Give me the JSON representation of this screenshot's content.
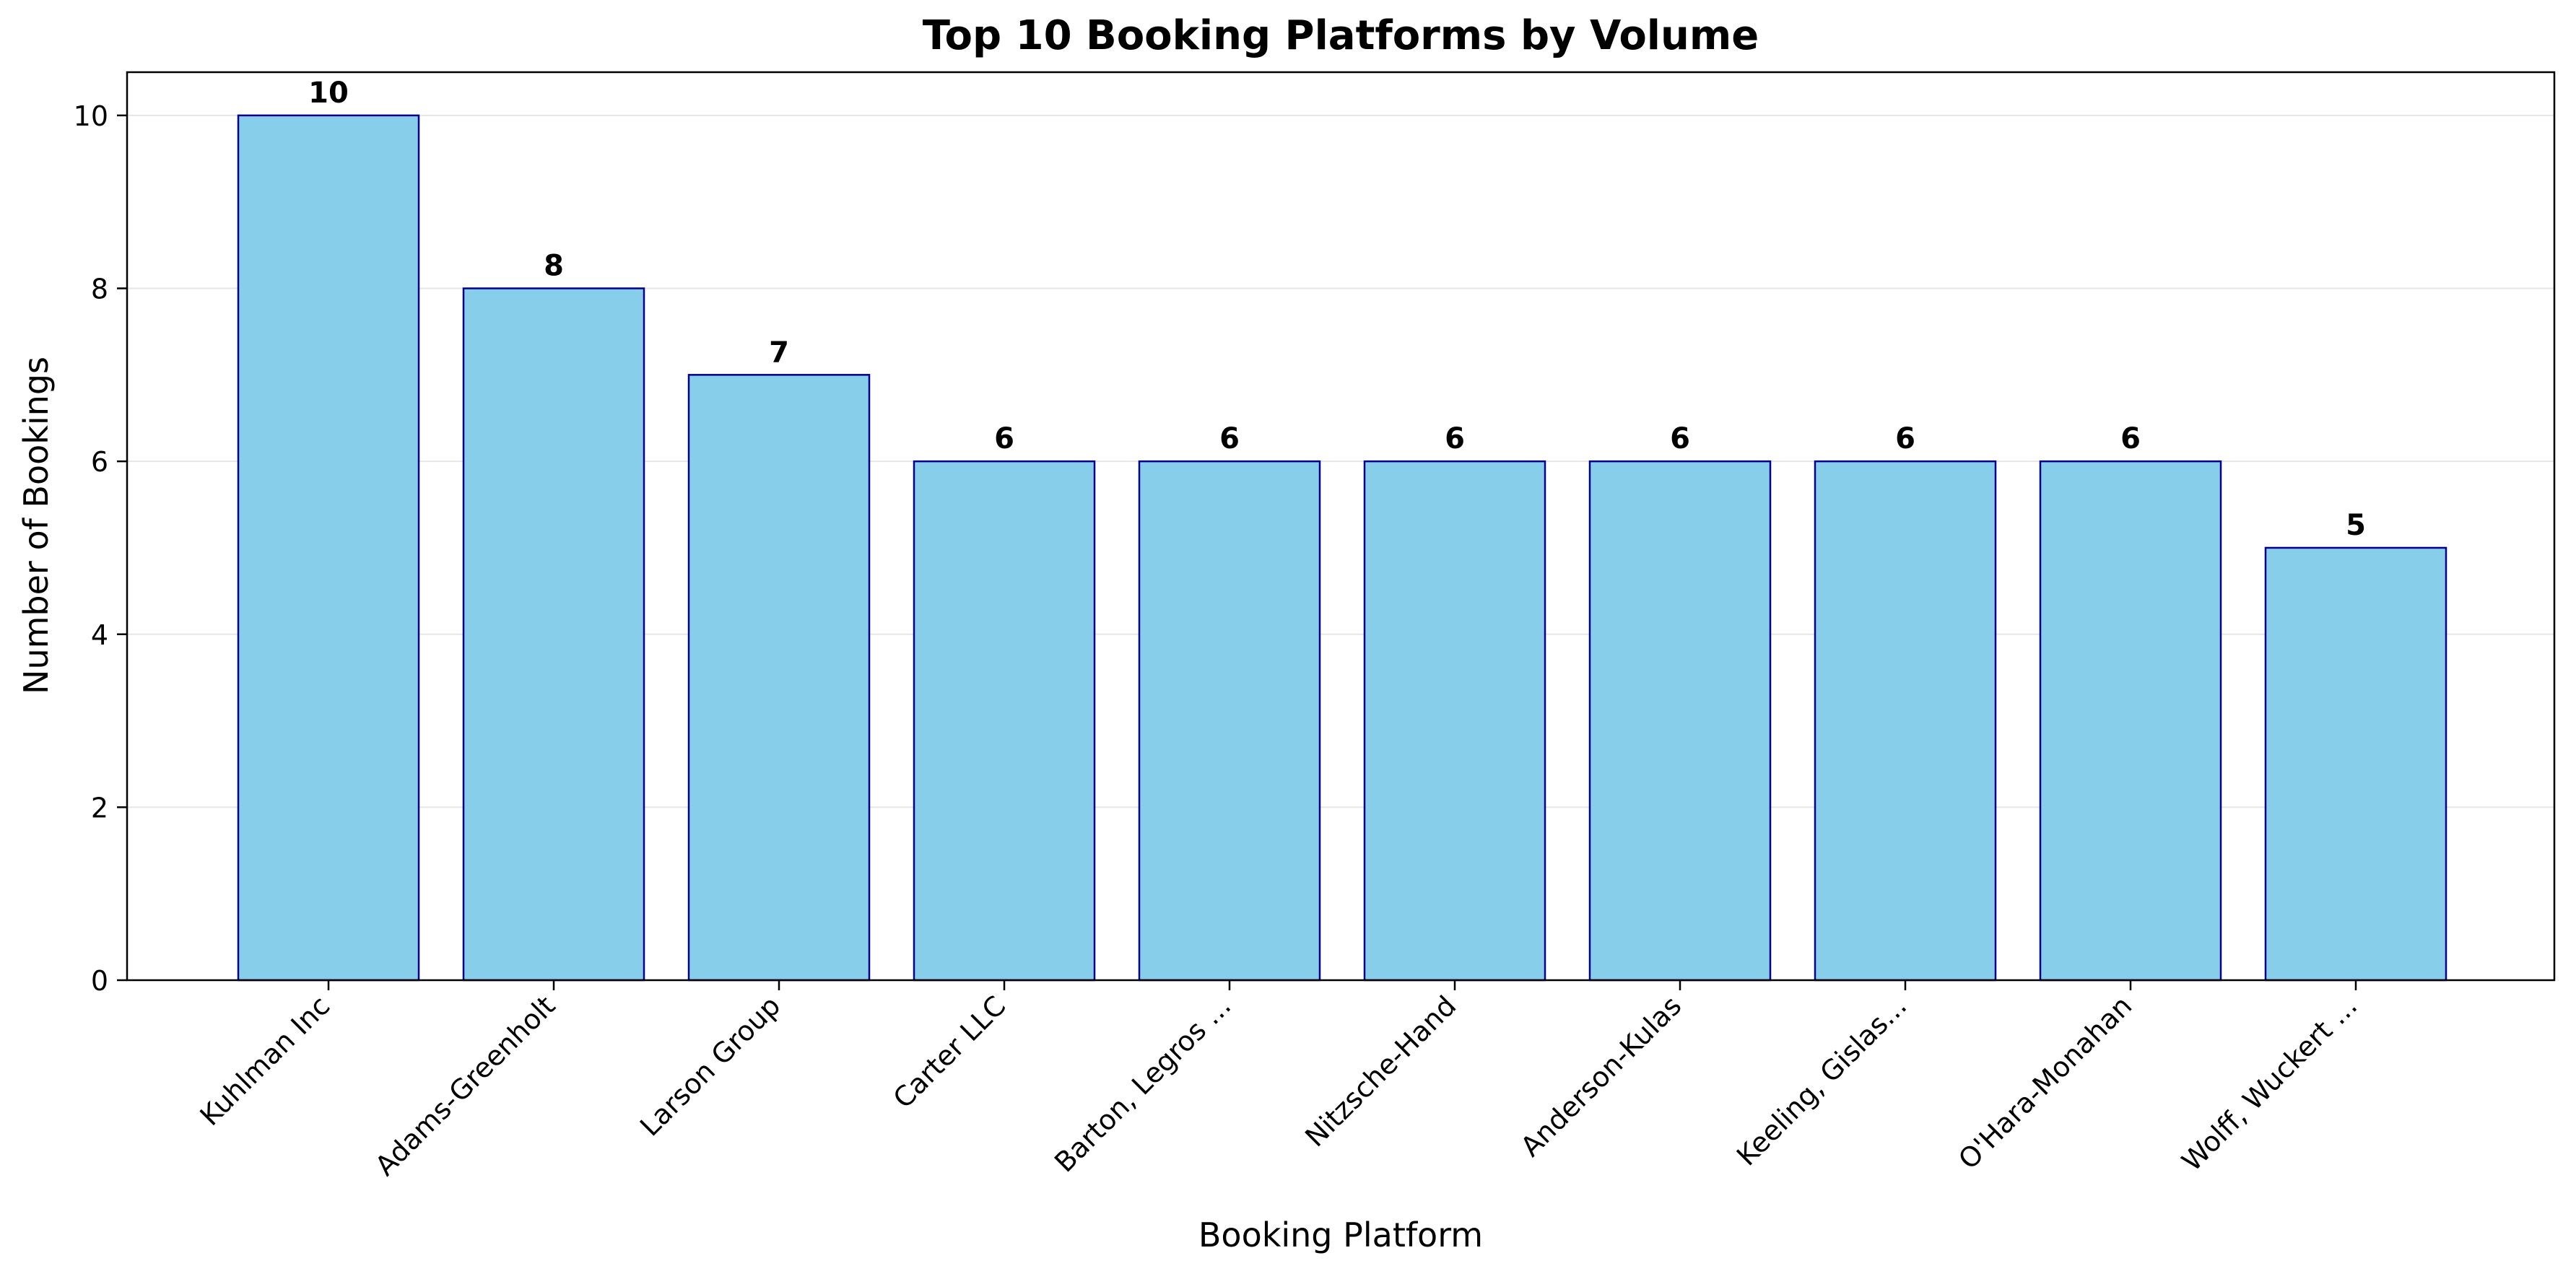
{
  "chart_data": {
    "type": "bar",
    "title": "Top 10 Booking Platforms by Volume",
    "xlabel": "Booking Platform",
    "ylabel": "Number of Bookings",
    "categories": [
      "Kuhlman Inc",
      "Adams-Greenholt",
      "Larson Group",
      "Carter LLC",
      "Barton, Legros ...",
      "Nitzsche-Hand",
      "Anderson-Kulas",
      "Keeling, Gislas...",
      "O'Hara-Monahan",
      "Wolff, Wuckert ..."
    ],
    "values": [
      10,
      8,
      7,
      6,
      6,
      6,
      6,
      6,
      6,
      5
    ],
    "data_labels": [
      "10",
      "8",
      "7",
      "6",
      "6",
      "6",
      "6",
      "6",
      "6",
      "5"
    ],
    "ylim": [
      0,
      10.5
    ],
    "yticks": [
      0,
      2,
      4,
      6,
      8,
      10
    ],
    "ytick_labels": [
      "0",
      "2",
      "4",
      "6",
      "8",
      "10"
    ],
    "grid": "horizontal",
    "legend": "none",
    "colors": {
      "bar_fill": "#87ceeb",
      "bar_edge": "#00008b",
      "grid": "#e6e6e6",
      "axis": "#000000",
      "text": "#000000"
    }
  }
}
